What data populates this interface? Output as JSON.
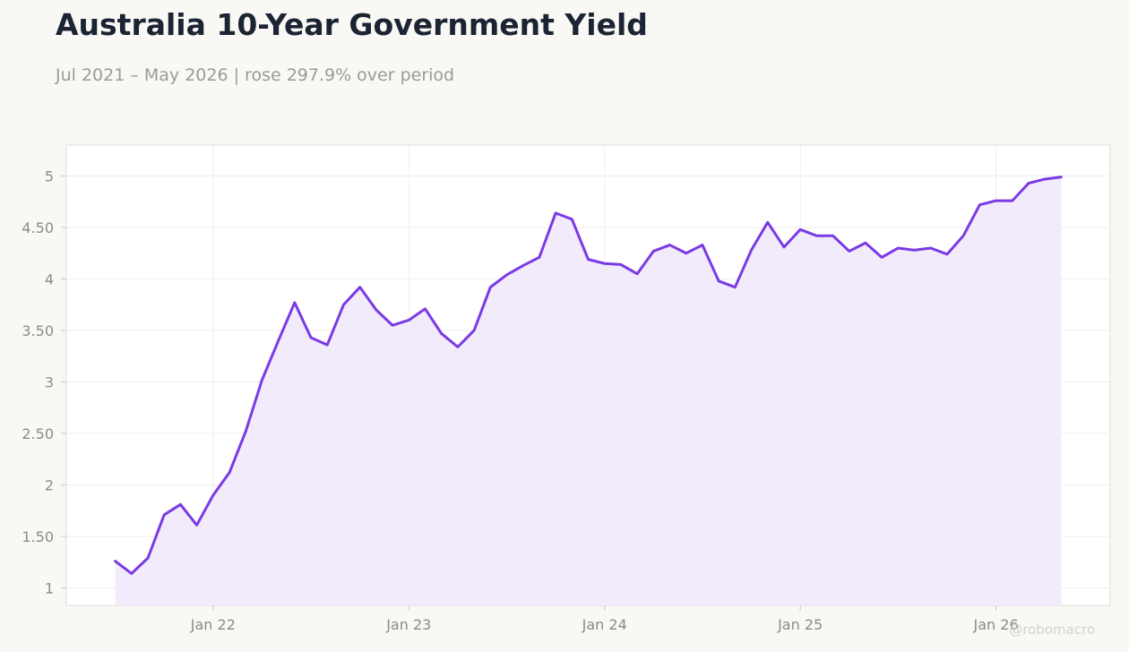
{
  "title": "Australia 10-Year Government Yield",
  "subtitle": "Jul 2021 – May 2026 | rose 297.9% over period",
  "watermark": "@robomacro",
  "colors": {
    "line": "#7b3ae5",
    "fill": "#f1ebfc",
    "plot_bg": "#ffffff",
    "grid": "#eeeeee",
    "page_bg": "#f9f8f5"
  },
  "chart_data": {
    "type": "area",
    "title": "Australia 10-Year Government Yield",
    "xlabel": "",
    "ylabel": "",
    "x_tick_labels": [
      "Jan 22",
      "Jan 23",
      "Jan 24",
      "Jan 25",
      "Jan 26"
    ],
    "x_tick_dates": [
      "2022-01",
      "2023-01",
      "2024-01",
      "2025-01",
      "2026-01"
    ],
    "y_ticks": [
      1,
      1.5,
      2,
      2.5,
      3,
      3.5,
      4,
      4.5,
      5
    ],
    "y_tick_labels": [
      "1",
      "1.50",
      "2",
      "2.50",
      "3",
      "3.50",
      "4",
      "4.50",
      "5"
    ],
    "xlim": [
      "2021-04",
      "2026-08"
    ],
    "ylim": [
      0.83,
      5.3
    ],
    "grid": true,
    "legend": "none",
    "series": [
      {
        "x": [
          "2021-07",
          "2021-08",
          "2021-09",
          "2021-10",
          "2021-11",
          "2021-12",
          "2022-01",
          "2022-02",
          "2022-03",
          "2022-04",
          "2022-05",
          "2022-06",
          "2022-07",
          "2022-08",
          "2022-09",
          "2022-10",
          "2022-11",
          "2022-12",
          "2023-01",
          "2023-02",
          "2023-03",
          "2023-04",
          "2023-05",
          "2023-06",
          "2023-07",
          "2023-08",
          "2023-09",
          "2023-10",
          "2023-11",
          "2023-12",
          "2024-01",
          "2024-02",
          "2024-03",
          "2024-04",
          "2024-05",
          "2024-06",
          "2024-07",
          "2024-08",
          "2024-09",
          "2024-10",
          "2024-11",
          "2024-12",
          "2025-01",
          "2025-02",
          "2025-03",
          "2025-04",
          "2025-05",
          "2025-06",
          "2025-07",
          "2025-08",
          "2025-09",
          "2025-10",
          "2025-11",
          "2025-12",
          "2026-01",
          "2026-02",
          "2026-03",
          "2026-04",
          "2026-05"
        ],
        "values": [
          1.26,
          1.14,
          1.29,
          1.71,
          1.81,
          1.61,
          1.9,
          2.12,
          2.52,
          3.02,
          3.4,
          3.77,
          3.43,
          3.36,
          3.75,
          3.92,
          3.7,
          3.55,
          3.6,
          3.71,
          3.47,
          3.34,
          3.5,
          3.92,
          4.04,
          4.13,
          4.21,
          4.64,
          4.58,
          4.19,
          4.15,
          4.14,
          4.05,
          4.27,
          4.33,
          4.25,
          4.33,
          3.98,
          3.92,
          4.28,
          4.55,
          4.31,
          4.48,
          4.42,
          4.42,
          4.27,
          4.35,
          4.21,
          4.3,
          4.28,
          4.3,
          4.24,
          4.42,
          4.72,
          4.76,
          4.76,
          4.93,
          4.97,
          4.99
        ]
      }
    ]
  }
}
